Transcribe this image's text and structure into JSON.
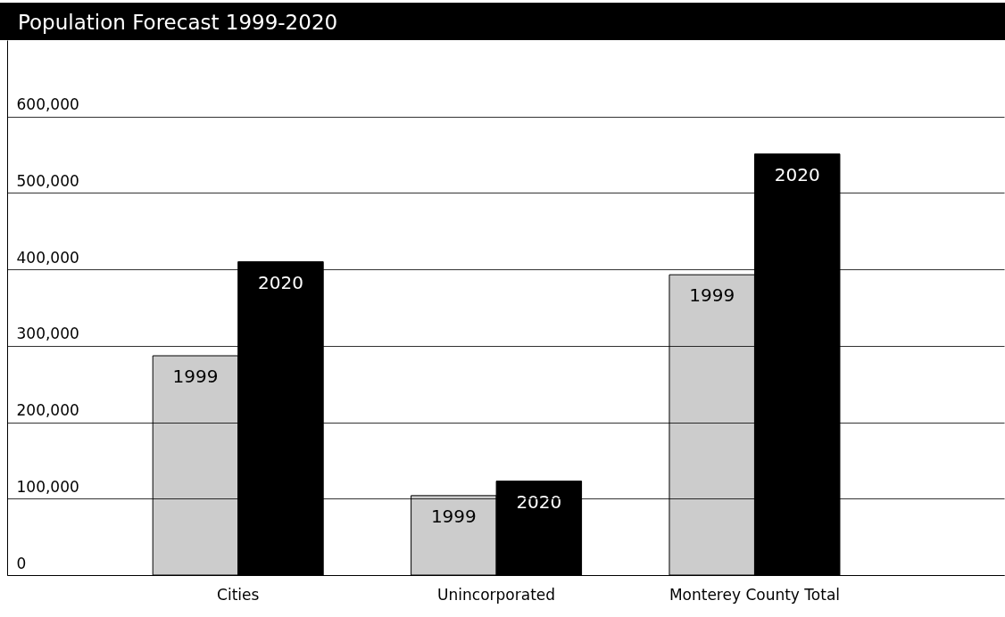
{
  "chart_data": {
    "type": "bar",
    "title": "Population Forecast 1999-2020",
    "categories": [
      "Cities",
      "Unincorporated",
      "Monterey County Total"
    ],
    "series": [
      {
        "name": "1999",
        "color": "#cccccc",
        "values": [
          287000,
          104000,
          393000
        ]
      },
      {
        "name": "2020",
        "color": "#000000",
        "values": [
          410000,
          123000,
          551000
        ]
      }
    ],
    "ylim": [
      0,
      700000
    ],
    "yticks": [
      {
        "value": 0,
        "label": "0"
      },
      {
        "value": 100000,
        "label": "100,000"
      },
      {
        "value": 200000,
        "label": "200,000"
      },
      {
        "value": 300000,
        "label": "300,000"
      },
      {
        "value": 400000,
        "label": "400,000"
      },
      {
        "value": 500000,
        "label": "500,000"
      },
      {
        "value": 600000,
        "label": "600,000"
      }
    ],
    "grid": "y",
    "legend": false
  }
}
